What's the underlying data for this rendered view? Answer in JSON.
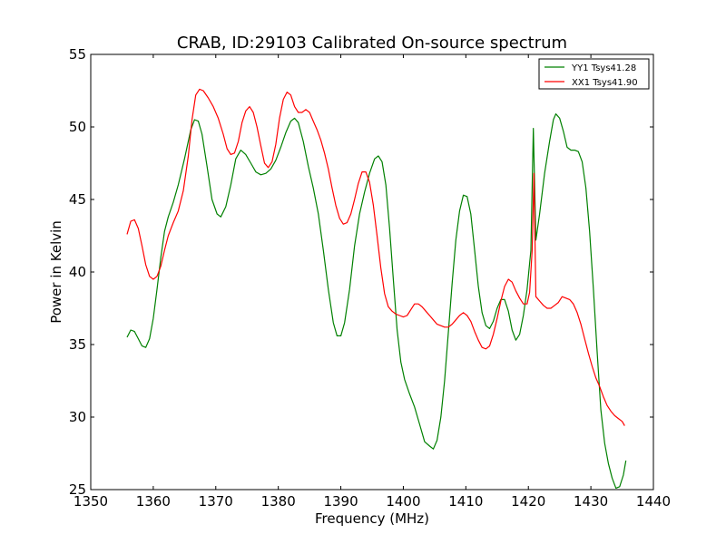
{
  "chart_data": {
    "type": "line",
    "title": "CRAB, ID:29103 Calibrated On-source spectrum",
    "xlabel": "Frequency (MHz)",
    "ylabel": "Power in Kelvin",
    "xlim": [
      1350,
      1440
    ],
    "ylim": [
      25,
      55
    ],
    "xticks": [
      1350,
      1360,
      1370,
      1380,
      1390,
      1400,
      1410,
      1420,
      1430,
      1440
    ],
    "yticks": [
      25,
      30,
      35,
      40,
      45,
      50,
      55
    ],
    "grid": false,
    "legend_position": "top-right",
    "series": [
      {
        "name": "YY1 Tsys41.28",
        "color": "#008000",
        "points": [
          [
            1355.8,
            35.5
          ],
          [
            1356.4,
            36.0
          ],
          [
            1357.0,
            35.9
          ],
          [
            1357.6,
            35.4
          ],
          [
            1358.2,
            34.9
          ],
          [
            1358.8,
            34.8
          ],
          [
            1359.4,
            35.4
          ],
          [
            1360.0,
            36.8
          ],
          [
            1360.6,
            38.8
          ],
          [
            1361.2,
            41.0
          ],
          [
            1361.8,
            42.8
          ],
          [
            1362.4,
            43.8
          ],
          [
            1363.2,
            44.8
          ],
          [
            1364.0,
            46.0
          ],
          [
            1365.0,
            47.8
          ],
          [
            1366.0,
            49.8
          ],
          [
            1366.6,
            50.5
          ],
          [
            1367.2,
            50.4
          ],
          [
            1367.8,
            49.5
          ],
          [
            1368.6,
            47.3
          ],
          [
            1369.4,
            45.0
          ],
          [
            1370.2,
            44.0
          ],
          [
            1370.8,
            43.8
          ],
          [
            1371.6,
            44.5
          ],
          [
            1372.4,
            46.0
          ],
          [
            1373.2,
            47.8
          ],
          [
            1374.0,
            48.4
          ],
          [
            1374.8,
            48.1
          ],
          [
            1375.6,
            47.5
          ],
          [
            1376.4,
            46.9
          ],
          [
            1377.2,
            46.7
          ],
          [
            1378.0,
            46.8
          ],
          [
            1378.8,
            47.1
          ],
          [
            1379.6,
            47.7
          ],
          [
            1380.4,
            48.6
          ],
          [
            1381.2,
            49.6
          ],
          [
            1382.0,
            50.4
          ],
          [
            1382.6,
            50.6
          ],
          [
            1383.2,
            50.3
          ],
          [
            1384.0,
            49.0
          ],
          [
            1384.8,
            47.3
          ],
          [
            1385.6,
            45.8
          ],
          [
            1386.4,
            44.0
          ],
          [
            1387.2,
            41.5
          ],
          [
            1388.0,
            38.8
          ],
          [
            1388.8,
            36.5
          ],
          [
            1389.4,
            35.6
          ],
          [
            1390.0,
            35.6
          ],
          [
            1390.6,
            36.5
          ],
          [
            1391.4,
            38.8
          ],
          [
            1392.2,
            41.8
          ],
          [
            1393.0,
            44.0
          ],
          [
            1393.8,
            45.5
          ],
          [
            1394.6,
            46.8
          ],
          [
            1395.4,
            47.8
          ],
          [
            1396.0,
            48.0
          ],
          [
            1396.6,
            47.6
          ],
          [
            1397.2,
            46.0
          ],
          [
            1397.8,
            43.0
          ],
          [
            1398.4,
            39.5
          ],
          [
            1399.0,
            36.0
          ],
          [
            1399.6,
            33.8
          ],
          [
            1400.2,
            32.6
          ],
          [
            1401.0,
            31.6
          ],
          [
            1401.8,
            30.7
          ],
          [
            1402.6,
            29.5
          ],
          [
            1403.4,
            28.3
          ],
          [
            1404.2,
            28.0
          ],
          [
            1404.8,
            27.8
          ],
          [
            1405.4,
            28.4
          ],
          [
            1406.0,
            30.0
          ],
          [
            1406.6,
            32.5
          ],
          [
            1407.2,
            35.8
          ],
          [
            1407.8,
            39.2
          ],
          [
            1408.4,
            42.2
          ],
          [
            1409.0,
            44.2
          ],
          [
            1409.6,
            45.3
          ],
          [
            1410.2,
            45.2
          ],
          [
            1410.8,
            44.0
          ],
          [
            1411.4,
            41.5
          ],
          [
            1412.0,
            39.0
          ],
          [
            1412.6,
            37.2
          ],
          [
            1413.2,
            36.3
          ],
          [
            1413.8,
            36.1
          ],
          [
            1414.4,
            36.6
          ],
          [
            1415.0,
            37.5
          ],
          [
            1415.6,
            38.1
          ],
          [
            1416.2,
            38.1
          ],
          [
            1416.8,
            37.3
          ],
          [
            1417.4,
            36.0
          ],
          [
            1418.0,
            35.3
          ],
          [
            1418.6,
            35.7
          ],
          [
            1419.2,
            37.0
          ],
          [
            1419.8,
            38.8
          ],
          [
            1420.4,
            41.5
          ],
          [
            1420.8,
            49.9
          ],
          [
            1421.2,
            42.2
          ],
          [
            1421.8,
            44.0
          ],
          [
            1422.6,
            46.8
          ],
          [
            1423.4,
            49.0
          ],
          [
            1424.0,
            50.5
          ],
          [
            1424.4,
            50.9
          ],
          [
            1425.0,
            50.6
          ],
          [
            1425.6,
            49.7
          ],
          [
            1426.2,
            48.6
          ],
          [
            1426.8,
            48.4
          ],
          [
            1427.4,
            48.4
          ],
          [
            1428.0,
            48.3
          ],
          [
            1428.6,
            47.6
          ],
          [
            1429.2,
            45.8
          ],
          [
            1429.8,
            42.8
          ],
          [
            1430.4,
            38.8
          ],
          [
            1431.0,
            34.5
          ],
          [
            1431.6,
            30.5
          ],
          [
            1432.2,
            28.2
          ],
          [
            1432.8,
            26.8
          ],
          [
            1433.4,
            25.8
          ],
          [
            1434.0,
            25.1
          ],
          [
            1434.6,
            25.2
          ],
          [
            1435.2,
            26.0
          ],
          [
            1435.6,
            27.0
          ]
        ]
      },
      {
        "name": "XX1 Tsys41.90",
        "color": "#ff0000",
        "points": [
          [
            1355.8,
            42.6
          ],
          [
            1356.4,
            43.5
          ],
          [
            1357.0,
            43.6
          ],
          [
            1357.6,
            43.0
          ],
          [
            1358.2,
            41.8
          ],
          [
            1358.8,
            40.5
          ],
          [
            1359.4,
            39.7
          ],
          [
            1360.0,
            39.5
          ],
          [
            1360.6,
            39.7
          ],
          [
            1361.2,
            40.4
          ],
          [
            1361.8,
            41.5
          ],
          [
            1362.4,
            42.5
          ],
          [
            1363.2,
            43.4
          ],
          [
            1364.0,
            44.2
          ],
          [
            1364.8,
            45.6
          ],
          [
            1365.6,
            48.0
          ],
          [
            1366.2,
            50.5
          ],
          [
            1366.8,
            52.2
          ],
          [
            1367.4,
            52.6
          ],
          [
            1368.0,
            52.5
          ],
          [
            1368.8,
            52.0
          ],
          [
            1369.6,
            51.4
          ],
          [
            1370.4,
            50.6
          ],
          [
            1371.2,
            49.5
          ],
          [
            1371.8,
            48.5
          ],
          [
            1372.4,
            48.1
          ],
          [
            1373.0,
            48.2
          ],
          [
            1373.6,
            49.0
          ],
          [
            1374.2,
            50.3
          ],
          [
            1374.8,
            51.1
          ],
          [
            1375.4,
            51.4
          ],
          [
            1376.0,
            51.0
          ],
          [
            1376.6,
            50.0
          ],
          [
            1377.2,
            48.7
          ],
          [
            1377.8,
            47.5
          ],
          [
            1378.4,
            47.2
          ],
          [
            1379.0,
            47.6
          ],
          [
            1379.6,
            48.8
          ],
          [
            1380.2,
            50.6
          ],
          [
            1380.8,
            51.9
          ],
          [
            1381.4,
            52.4
          ],
          [
            1382.0,
            52.2
          ],
          [
            1382.6,
            51.4
          ],
          [
            1383.2,
            51.0
          ],
          [
            1383.8,
            51.0
          ],
          [
            1384.4,
            51.2
          ],
          [
            1385.0,
            51.0
          ],
          [
            1385.6,
            50.4
          ],
          [
            1386.2,
            49.8
          ],
          [
            1386.8,
            49.1
          ],
          [
            1387.4,
            48.2
          ],
          [
            1388.0,
            47.1
          ],
          [
            1388.6,
            45.8
          ],
          [
            1389.2,
            44.6
          ],
          [
            1389.8,
            43.7
          ],
          [
            1390.4,
            43.3
          ],
          [
            1391.0,
            43.4
          ],
          [
            1391.6,
            44.0
          ],
          [
            1392.2,
            45.0
          ],
          [
            1392.8,
            46.1
          ],
          [
            1393.4,
            46.9
          ],
          [
            1394.0,
            46.9
          ],
          [
            1394.6,
            46.2
          ],
          [
            1395.2,
            44.6
          ],
          [
            1395.8,
            42.5
          ],
          [
            1396.4,
            40.3
          ],
          [
            1397.0,
            38.5
          ],
          [
            1397.6,
            37.6
          ],
          [
            1398.2,
            37.3
          ],
          [
            1398.8,
            37.1
          ],
          [
            1399.4,
            37.0
          ],
          [
            1400.0,
            36.9
          ],
          [
            1400.6,
            37.0
          ],
          [
            1401.2,
            37.4
          ],
          [
            1401.8,
            37.8
          ],
          [
            1402.4,
            37.8
          ],
          [
            1403.0,
            37.6
          ],
          [
            1403.6,
            37.3
          ],
          [
            1404.2,
            37.0
          ],
          [
            1404.8,
            36.7
          ],
          [
            1405.4,
            36.4
          ],
          [
            1406.0,
            36.3
          ],
          [
            1406.6,
            36.2
          ],
          [
            1407.2,
            36.2
          ],
          [
            1407.8,
            36.4
          ],
          [
            1408.4,
            36.7
          ],
          [
            1409.0,
            37.0
          ],
          [
            1409.6,
            37.2
          ],
          [
            1410.2,
            37.0
          ],
          [
            1410.8,
            36.6
          ],
          [
            1411.4,
            35.9
          ],
          [
            1412.0,
            35.3
          ],
          [
            1412.6,
            34.8
          ],
          [
            1413.2,
            34.7
          ],
          [
            1413.8,
            34.9
          ],
          [
            1414.4,
            35.7
          ],
          [
            1415.0,
            36.8
          ],
          [
            1415.6,
            38.0
          ],
          [
            1416.2,
            39.0
          ],
          [
            1416.8,
            39.5
          ],
          [
            1417.4,
            39.3
          ],
          [
            1418.0,
            38.7
          ],
          [
            1418.6,
            38.2
          ],
          [
            1419.2,
            37.8
          ],
          [
            1419.8,
            37.8
          ],
          [
            1420.2,
            38.6
          ],
          [
            1420.6,
            41.5
          ],
          [
            1420.9,
            46.8
          ],
          [
            1421.2,
            38.3
          ],
          [
            1421.8,
            38.0
          ],
          [
            1422.4,
            37.7
          ],
          [
            1423.0,
            37.5
          ],
          [
            1423.6,
            37.5
          ],
          [
            1424.2,
            37.7
          ],
          [
            1424.8,
            37.9
          ],
          [
            1425.4,
            38.3
          ],
          [
            1426.0,
            38.2
          ],
          [
            1426.6,
            38.1
          ],
          [
            1427.2,
            37.8
          ],
          [
            1427.8,
            37.2
          ],
          [
            1428.4,
            36.4
          ],
          [
            1429.0,
            35.4
          ],
          [
            1429.6,
            34.4
          ],
          [
            1430.2,
            33.5
          ],
          [
            1430.8,
            32.7
          ],
          [
            1431.4,
            32.1
          ],
          [
            1432.0,
            31.4
          ],
          [
            1432.6,
            30.8
          ],
          [
            1433.2,
            30.4
          ],
          [
            1433.8,
            30.1
          ],
          [
            1434.4,
            29.9
          ],
          [
            1435.0,
            29.7
          ],
          [
            1435.4,
            29.4
          ]
        ]
      }
    ]
  }
}
